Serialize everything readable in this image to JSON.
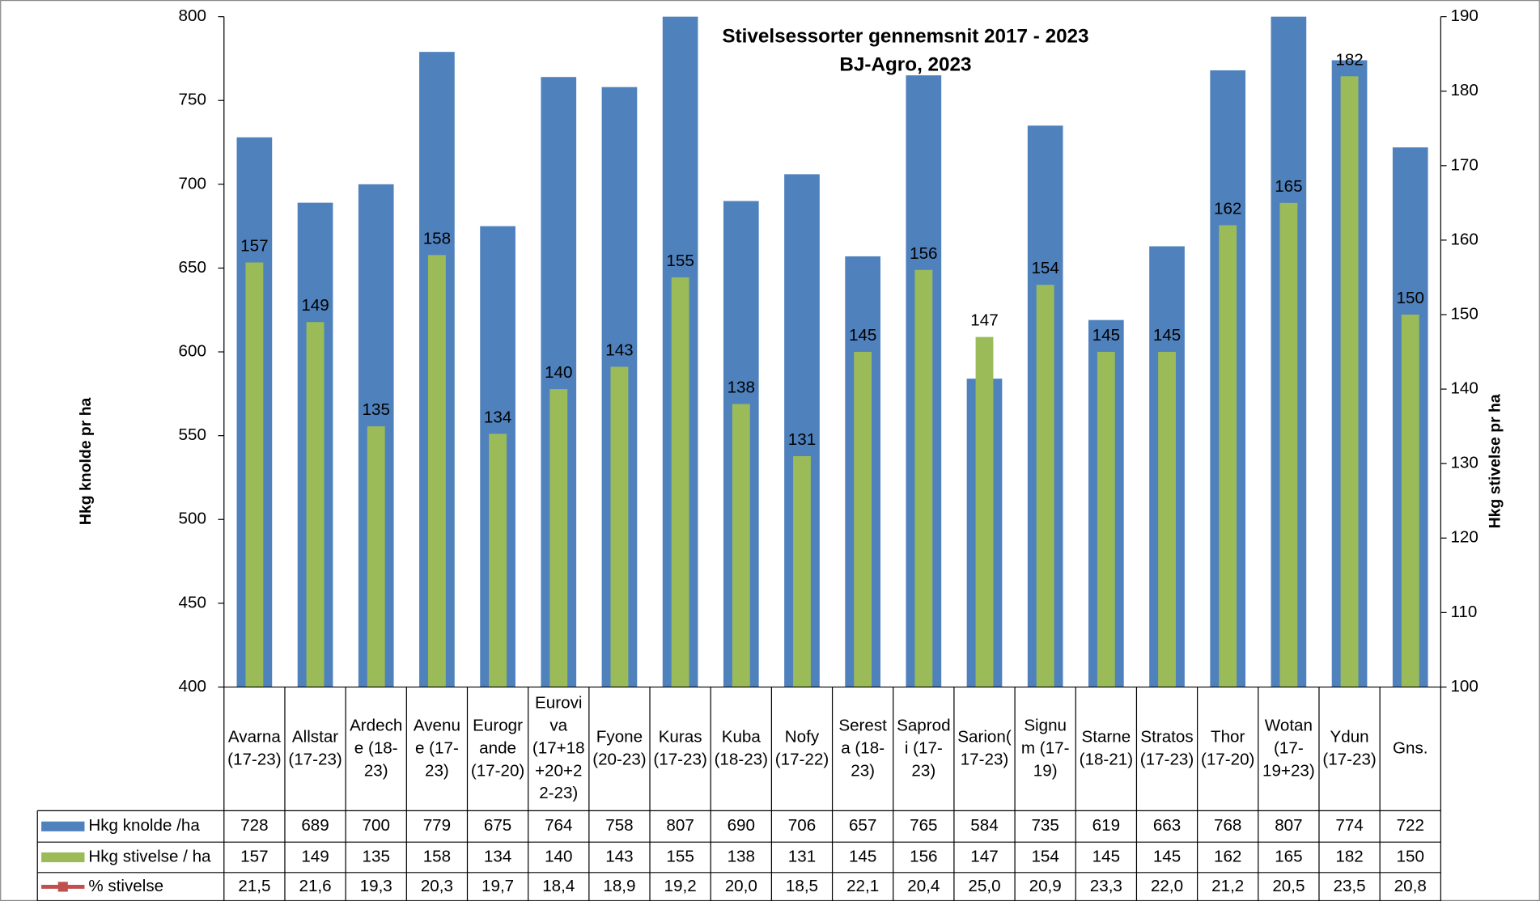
{
  "chart_data": {
    "type": "bar",
    "title": "Stivelsessorter gennemsnit 2017 - 2023",
    "subtitle": "BJ-Agro, 2023",
    "y_label": "Hkg knolde pr ha",
    "y2_label": "Hkg stivelse pr ha",
    "categories": [
      [
        "Avarna",
        "(17-23)"
      ],
      [
        "Allstar",
        "(17-23)"
      ],
      [
        "Ardech",
        "e (18-",
        "23)"
      ],
      [
        "Avenu",
        "e (17-",
        "23)"
      ],
      [
        "Eurogr",
        "ande",
        "(17-20)"
      ],
      [
        "Eurovi",
        "va",
        "(17+18",
        "+20+2",
        "2-23)"
      ],
      [
        "Fyone",
        "(20-23)"
      ],
      [
        "Kuras",
        "(17-23)"
      ],
      [
        "Kuba",
        "(18-23)"
      ],
      [
        "Nofy",
        "(17-22)"
      ],
      [
        "Serest",
        "a (18-",
        "23)"
      ],
      [
        "Saprod",
        "i (17-",
        "23)"
      ],
      [
        "Sarion(",
        "17-23)"
      ],
      [
        "Signu",
        "m (17-",
        "19)"
      ],
      [
        "Starne",
        "(18-21)"
      ],
      [
        "Stratos",
        "(17-23)"
      ],
      [
        "Thor",
        "(17-20)"
      ],
      [
        "Wotan",
        "(17-",
        "19+23)"
      ],
      [
        "Ydun",
        "(17-23)"
      ],
      [
        "Gns."
      ]
    ],
    "series": [
      {
        "name": "Hkg knolde /ha",
        "color": "#4f81bd",
        "axis": "y",
        "values": [
          728,
          689,
          700,
          779,
          675,
          764,
          758,
          807,
          690,
          706,
          657,
          765,
          584,
          735,
          619,
          663,
          768,
          807,
          774,
          722
        ]
      },
      {
        "name": "Hkg stivelse / ha",
        "color": "#9bbb59",
        "axis": "y2",
        "values": [
          157,
          149,
          135,
          158,
          134,
          140,
          143,
          155,
          138,
          131,
          145,
          156,
          147,
          154,
          145,
          145,
          162,
          165,
          182,
          150
        ]
      },
      {
        "name": "% stivelse",
        "color": "#c0504d",
        "values": [
          21.5,
          21.6,
          19.3,
          20.3,
          19.7,
          18.4,
          18.9,
          19.2,
          20.0,
          18.5,
          22.1,
          20.4,
          25.0,
          20.9,
          23.3,
          22.0,
          21.2,
          20.5,
          23.5,
          20.8
        ],
        "value_labels": [
          "21,5",
          "21,6",
          "19,3",
          "20,3",
          "19,7",
          "18,4",
          "18,9",
          "19,2",
          "20,0",
          "18,5",
          "22,1",
          "20,4",
          "25,0",
          "20,9",
          "23,3",
          "22,0",
          "21,2",
          "20,5",
          "23,5",
          "20,8"
        ]
      }
    ],
    "ylim": [
      400,
      800
    ],
    "yticks": [
      400,
      450,
      500,
      550,
      600,
      650,
      700,
      750,
      800
    ],
    "y2lim": [
      100,
      190
    ],
    "y2ticks": [
      100,
      110,
      120,
      130,
      140,
      150,
      160,
      170,
      180,
      190
    ],
    "grid": false
  }
}
